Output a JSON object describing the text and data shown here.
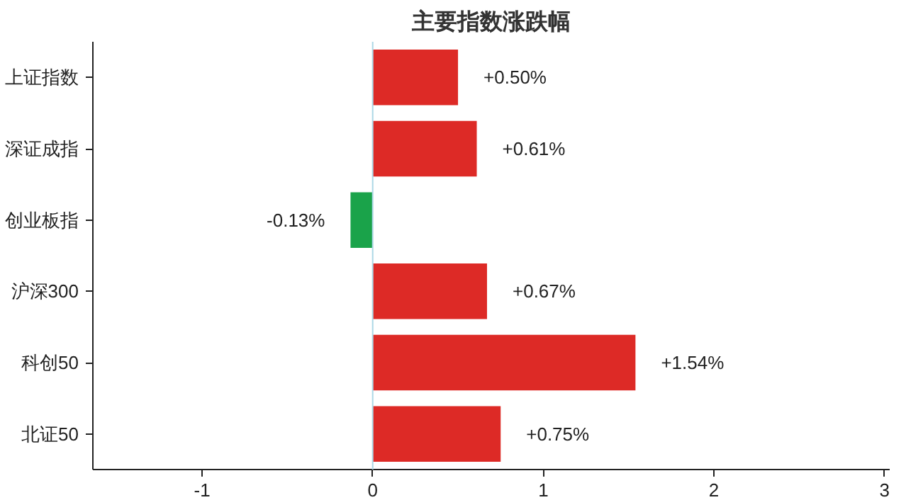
{
  "chart_data": {
    "type": "bar",
    "orientation": "horizontal",
    "title": "主要指数涨跌幅",
    "categories": [
      "上证指数",
      "深证成指",
      "创业板指",
      "沪深300",
      "科创50",
      "北证50"
    ],
    "values": [
      0.5,
      0.61,
      -0.13,
      0.67,
      1.54,
      0.75
    ],
    "colors": [
      "#dd2a26",
      "#dd2a26",
      "#1aa34a",
      "#dd2a26",
      "#dd2a26",
      "#dd2a26"
    ],
    "value_labels": [
      "+0.50%",
      "+0.61%",
      "-0.13%",
      "+0.67%",
      "+1.54%",
      "+0.75%"
    ],
    "xlim": [
      -1.64,
      3.03
    ],
    "xticks": [
      -1,
      0,
      1,
      2,
      3
    ],
    "ref_lines": [
      {
        "axis": "x",
        "value": 0,
        "color": "#add8e6"
      }
    ],
    "grid": false
  }
}
